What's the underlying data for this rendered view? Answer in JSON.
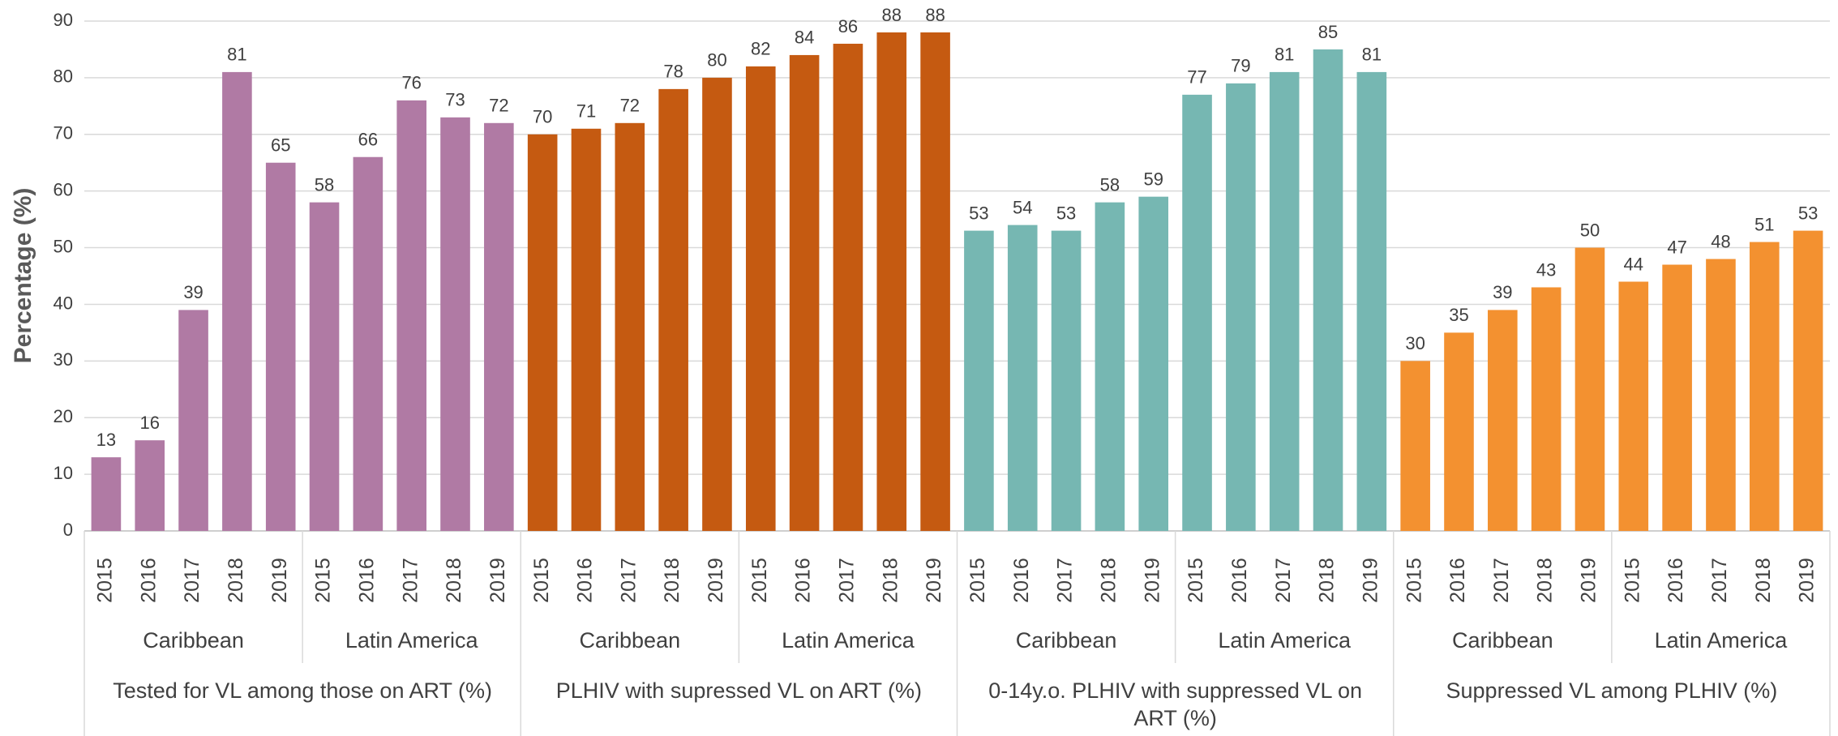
{
  "chart_data": {
    "type": "bar",
    "y_label": "Percentage (%)",
    "ylim": [
      0,
      90
    ],
    "yticks": [
      0,
      10,
      20,
      30,
      40,
      50,
      60,
      70,
      80,
      90
    ],
    "grid": true,
    "groups": [
      {
        "name": "Tested for VL among those on ART (%)",
        "color": "#b07aa4",
        "subgroups": [
          {
            "name": "Caribbean",
            "categories": [
              "2015",
              "2016",
              "2017",
              "2018",
              "2019"
            ],
            "values": [
              13,
              16,
              39,
              81,
              65
            ]
          },
          {
            "name": "Latin America",
            "categories": [
              "2015",
              "2016",
              "2017",
              "2018",
              "2019"
            ],
            "values": [
              58,
              66,
              76,
              73,
              72
            ]
          }
        ]
      },
      {
        "name": "PLHIV with supressed VL on ART (%)",
        "color": "#c55a11",
        "subgroups": [
          {
            "name": "Caribbean",
            "categories": [
              "2015",
              "2016",
              "2017",
              "2018",
              "2019"
            ],
            "values": [
              70,
              71,
              72,
              78,
              80
            ]
          },
          {
            "name": "Latin America",
            "categories": [
              "2015",
              "2016",
              "2017",
              "2018",
              "2019"
            ],
            "values": [
              82,
              84,
              86,
              88,
              88
            ]
          }
        ]
      },
      {
        "name": "0-14y.o. PLHIV with suppressed VL on ART (%)",
        "color": "#76b7b2",
        "subgroups": [
          {
            "name": "Caribbean",
            "categories": [
              "2015",
              "2016",
              "2017",
              "2018",
              "2019"
            ],
            "values": [
              53,
              54,
              53,
              58,
              59
            ]
          },
          {
            "name": "Latin America",
            "categories": [
              "2015",
              "2016",
              "2017",
              "2018",
              "2019"
            ],
            "values": [
              77,
              79,
              81,
              85,
              81
            ]
          }
        ]
      },
      {
        "name": "Suppressed VL among PLHIV (%)",
        "color": "#f39130",
        "subgroups": [
          {
            "name": "Caribbean",
            "categories": [
              "2015",
              "2016",
              "2017",
              "2018",
              "2019"
            ],
            "values": [
              30,
              35,
              39,
              43,
              50
            ]
          },
          {
            "name": "Latin America",
            "categories": [
              "2015",
              "2016",
              "2017",
              "2018",
              "2019"
            ],
            "values": [
              44,
              47,
              48,
              51,
              53
            ]
          }
        ]
      }
    ]
  }
}
